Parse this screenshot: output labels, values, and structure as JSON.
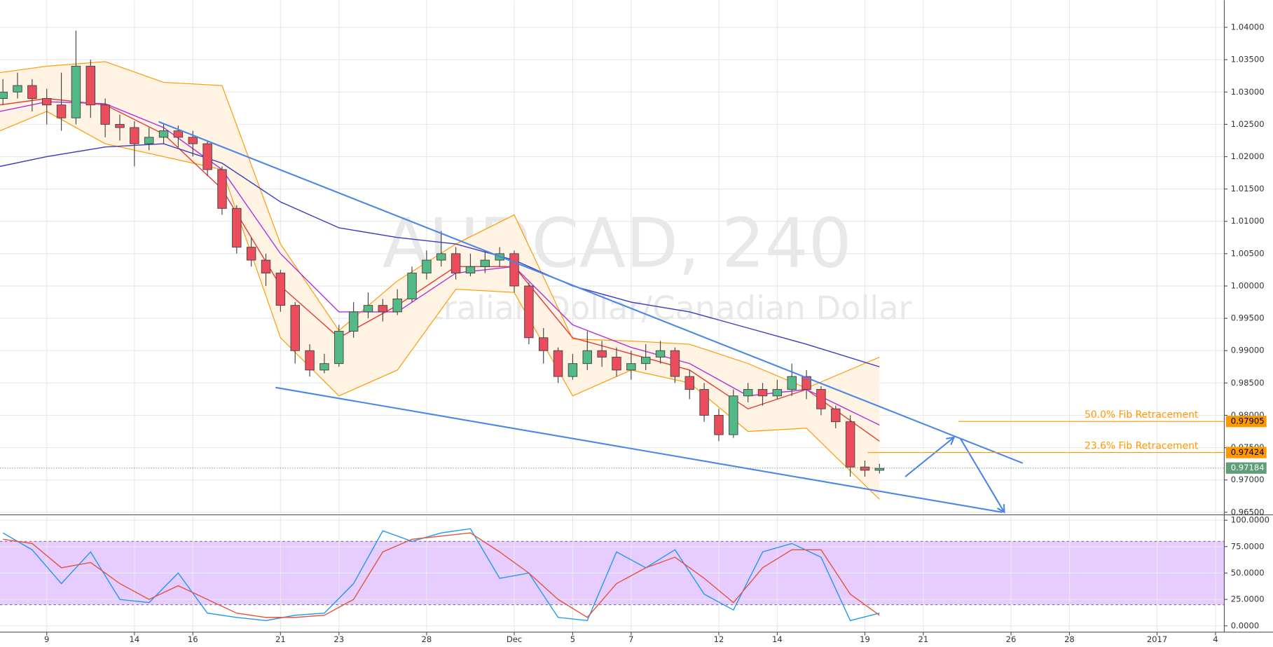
{
  "chart_data": [
    {
      "type": "candlestick",
      "title": "AUDCAD, 240",
      "subtitle": "Australian Dollar/Canadian Dollar",
      "x": [
        -1.5,
        -1,
        -0.5,
        0,
        0.5,
        1,
        1.5,
        2,
        2.5,
        3,
        3.5,
        4,
        4.5,
        5,
        5.5,
        6,
        6.5,
        7,
        7.5,
        8,
        8.5,
        9,
        9.5,
        10,
        10.5,
        11,
        11.5,
        12,
        12.5,
        13,
        13.5,
        14,
        14.5,
        15,
        15.5,
        16,
        16.5,
        17,
        17.5,
        18,
        18.5,
        19,
        19.5,
        20,
        20.5,
        21,
        21.5,
        22,
        22.5,
        23,
        23.5,
        24,
        24.5,
        25,
        25.5,
        26,
        26.5,
        27,
        27.5,
        28,
        28.5
      ],
      "open": [
        1.029,
        1.03,
        1.031,
        1.029,
        1.028,
        1.026,
        1.034,
        1.028,
        1.025,
        1.0245,
        1.022,
        1.023,
        1.024,
        1.023,
        1.022,
        1.018,
        1.012,
        1.006,
        1.004,
        1.002,
        0.997,
        0.99,
        0.987,
        0.988,
        0.993,
        0.996,
        0.997,
        0.996,
        0.998,
        1.002,
        1.004,
        1.005,
        1.002,
        1.003,
        1.004,
        1.005,
        1.0,
        0.992,
        0.99,
        0.986,
        0.988,
        0.99,
        0.989,
        0.987,
        0.988,
        0.989,
        0.99,
        0.986,
        0.984,
        0.98,
        0.977,
        0.983,
        0.984,
        0.983,
        0.984,
        0.986,
        0.984,
        0.981,
        0.979,
        0.972,
        0.9715
      ],
      "high": [
        1.032,
        1.033,
        1.032,
        1.0305,
        1.033,
        1.0395,
        1.035,
        1.029,
        1.0265,
        1.0255,
        1.0245,
        1.025,
        1.0248,
        1.024,
        1.0225,
        1.0185,
        1.0125,
        1.0075,
        1.005,
        1.0025,
        0.9975,
        0.991,
        0.9895,
        0.994,
        0.9975,
        0.999,
        0.998,
        0.9995,
        1.003,
        1.0055,
        1.0085,
        1.006,
        1.005,
        1.0055,
        1.006,
        1.0055,
        1.0005,
        0.9935,
        0.9905,
        0.9895,
        0.993,
        0.9915,
        0.9905,
        0.99,
        0.991,
        0.9915,
        0.9905,
        0.987,
        0.985,
        0.981,
        0.984,
        0.985,
        0.985,
        0.9855,
        0.988,
        0.987,
        0.9845,
        0.9815,
        0.98,
        0.973,
        0.9725
      ],
      "low": [
        1.028,
        1.029,
        1.027,
        1.025,
        1.024,
        1.025,
        1.026,
        1.023,
        1.0225,
        1.0185,
        1.021,
        1.022,
        1.0215,
        1.02,
        1.017,
        1.011,
        1.005,
        1.003,
        1.0,
        0.996,
        0.988,
        0.986,
        0.9865,
        0.9875,
        0.992,
        0.995,
        0.9945,
        0.9955,
        0.9975,
        1.001,
        1.003,
        1.001,
        1.0015,
        1.002,
        1.003,
        0.999,
        0.991,
        0.988,
        0.985,
        0.9855,
        0.987,
        0.9875,
        0.986,
        0.9855,
        0.987,
        0.988,
        0.985,
        0.9825,
        0.979,
        0.976,
        0.9765,
        0.982,
        0.9815,
        0.9825,
        0.983,
        0.9825,
        0.98,
        0.978,
        0.9705,
        0.9705,
        0.971
      ],
      "close": [
        1.03,
        1.031,
        1.029,
        1.028,
        1.026,
        1.034,
        1.028,
        1.025,
        1.0245,
        1.022,
        1.023,
        1.024,
        1.023,
        1.022,
        1.018,
        1.012,
        1.006,
        1.004,
        1.002,
        0.997,
        0.99,
        0.987,
        0.988,
        0.993,
        0.996,
        0.997,
        0.996,
        0.998,
        1.002,
        1.004,
        1.005,
        1.002,
        1.003,
        1.004,
        1.005,
        1.0,
        0.992,
        0.99,
        0.986,
        0.988,
        0.99,
        0.989,
        0.987,
        0.988,
        0.989,
        0.99,
        0.986,
        0.984,
        0.98,
        0.977,
        0.983,
        0.984,
        0.983,
        0.984,
        0.986,
        0.984,
        0.981,
        0.979,
        0.972,
        0.9715,
        0.9718
      ],
      "up_color": "#53b987",
      "down_color": "#eb4d5c",
      "overlay_x": [
        -1.6,
        0,
        2,
        4,
        6,
        8,
        10,
        12,
        14,
        16,
        18,
        20,
        22,
        24,
        26,
        28.5
      ],
      "bollinger": {
        "color": "#ff9800",
        "fill": "#fff3e3",
        "upper": [
          1.033,
          1.034,
          1.0347,
          1.0315,
          1.031,
          1.0065,
          0.9931,
          1.0008,
          1.0065,
          1.011,
          0.9918,
          0.9915,
          0.991,
          0.988,
          0.9842,
          0.989
        ],
        "lower": [
          1.024,
          1.027,
          1.022,
          1.02,
          1.018,
          0.992,
          0.983,
          0.987,
          0.9995,
          0.999,
          0.983,
          0.987,
          0.985,
          0.9775,
          0.978,
          0.967
        ]
      },
      "moving_averages": [
        {
          "color": "#e53935",
          "values": [
            1.028,
            1.029,
            1.028,
            1.0235,
            1.015,
            1.0,
            0.992,
            0.997,
            1.003,
            1.003,
            0.992,
            0.9895,
            0.987,
            0.981,
            0.984,
            0.976
          ]
        },
        {
          "color": "#b030e0",
          "values": [
            1.027,
            1.0285,
            1.0282,
            1.0245,
            1.018,
            1.005,
            0.996,
            0.996,
            1.002,
            1.003,
            0.994,
            0.9905,
            0.988,
            0.983,
            0.984,
            0.9785
          ]
        },
        {
          "color": "#3a3ac0",
          "values": [
            1.0185,
            1.02,
            1.0215,
            1.022,
            1.019,
            1.013,
            1.009,
            1.0075,
            1.0065,
            1.004,
            1.0,
            0.9975,
            0.996,
            0.9935,
            0.991,
            0.9875
          ]
        }
      ],
      "trendlines": [
        {
          "color": "#4a86e8",
          "x": [
            3.83,
            33.4
          ],
          "values": [
            1.0254,
            0.9726
          ]
        },
        {
          "color": "#4a86e8",
          "x": [
            7.83,
            32.7
          ],
          "values": [
            0.9843,
            0.965
          ]
        }
      ],
      "arrows": [
        {
          "color": "#4a86e8",
          "x": [
            29.38,
            31.05
          ],
          "values": [
            0.9705,
            0.9766
          ]
        },
        {
          "color": "#4a86e8",
          "x": [
            31.27,
            32.77
          ],
          "values": [
            0.9764,
            0.965
          ]
        }
      ],
      "fib_levels": [
        {
          "value": 0.97905,
          "label": "0.97905",
          "text": "50.0% Fib Retracement",
          "x_start": 31.2,
          "color": "#ff9800"
        },
        {
          "value": 0.97424,
          "label": "0.97424",
          "text": "23.6% Fib Retracement",
          "x_start": 28.1,
          "color": "#ff9800"
        }
      ],
      "last_price": {
        "value": 0.97184,
        "label": "0.97184",
        "color": "#5e9e79"
      },
      "xlim": [
        -1.6,
        40.3
      ],
      "ylim": [
        0.9648,
        1.0442
      ],
      "yticks": [
        {
          "value": 1.04,
          "label": "1.04000"
        },
        {
          "value": 1.035,
          "label": "1.03500"
        },
        {
          "value": 1.03,
          "label": "1.03000"
        },
        {
          "value": 1.025,
          "label": "1.02500"
        },
        {
          "value": 1.02,
          "label": "1.02000"
        },
        {
          "value": 1.015,
          "label": "1.01500"
        },
        {
          "value": 1.01,
          "label": "1.01000"
        },
        {
          "value": 1.005,
          "label": "1.00500"
        },
        {
          "value": 1.0,
          "label": "1.00000"
        },
        {
          "value": 0.995,
          "label": "0.99500"
        },
        {
          "value": 0.99,
          "label": "0.99000"
        },
        {
          "value": 0.985,
          "label": "0.98500"
        },
        {
          "value": 0.98,
          "label": "0.98000"
        },
        {
          "value": 0.975,
          "label": "0.97500"
        },
        {
          "value": 0.97,
          "label": "0.97000"
        },
        {
          "value": 0.965,
          "label": "0.96500"
        }
      ],
      "xticks": [
        {
          "value": 0,
          "label": "9"
        },
        {
          "value": 3,
          "label": "14"
        },
        {
          "value": 5,
          "label": "16"
        },
        {
          "value": 8,
          "label": "21"
        },
        {
          "value": 10,
          "label": "23"
        },
        {
          "value": 13,
          "label": "28"
        },
        {
          "value": 16,
          "label": "Dec"
        },
        {
          "value": 18,
          "label": "5"
        },
        {
          "value": 20,
          "label": "7"
        },
        {
          "value": 23,
          "label": "12"
        },
        {
          "value": 25,
          "label": "14"
        },
        {
          "value": 28,
          "label": "19"
        },
        {
          "value": 30,
          "label": "21"
        },
        {
          "value": 33,
          "label": "26"
        },
        {
          "value": 35,
          "label": "28"
        },
        {
          "value": 38,
          "label": "2017"
        },
        {
          "value": 40,
          "label": "4"
        }
      ],
      "grid": true
    },
    {
      "type": "line",
      "x": [
        -1.5,
        -0.5,
        0.5,
        1.5,
        2.5,
        3.5,
        4.5,
        5.5,
        6.5,
        7.5,
        8.5,
        9.5,
        10.5,
        11.5,
        12.5,
        13.5,
        14.5,
        15.5,
        16.5,
        17.5,
        18.5,
        19.5,
        20.5,
        21.5,
        22.5,
        23.5,
        24.5,
        25.5,
        26.5,
        27.5,
        28.5
      ],
      "series": [
        {
          "color": "#2196f3",
          "values": [
            88,
            72,
            40,
            70,
            25,
            22,
            50,
            12,
            8,
            5,
            10,
            12,
            40,
            90,
            80,
            88,
            92,
            45,
            50,
            8,
            5,
            70,
            55,
            72,
            30,
            15,
            70,
            78,
            65,
            5,
            12
          ]
        },
        {
          "color": "#e5533d",
          "values": [
            82,
            78,
            55,
            60,
            40,
            25,
            38,
            25,
            12,
            8,
            8,
            10,
            25,
            70,
            82,
            85,
            88,
            70,
            50,
            25,
            8,
            40,
            55,
            65,
            45,
            22,
            55,
            72,
            72,
            30,
            10
          ]
        }
      ],
      "band": {
        "values": [
          20,
          80
        ],
        "color": "#e6ccff"
      },
      "xlim": [
        -1.6,
        40.3
      ],
      "ylim": [
        -6,
        104
      ],
      "yticks": [
        {
          "value": 100,
          "label": "100.0000"
        },
        {
          "value": 75,
          "label": "75.0000"
        },
        {
          "value": 50,
          "label": "50.0000"
        },
        {
          "value": 25,
          "label": "25.0000"
        },
        {
          "value": 0,
          "label": "0.0000"
        }
      ],
      "grid": true
    }
  ]
}
